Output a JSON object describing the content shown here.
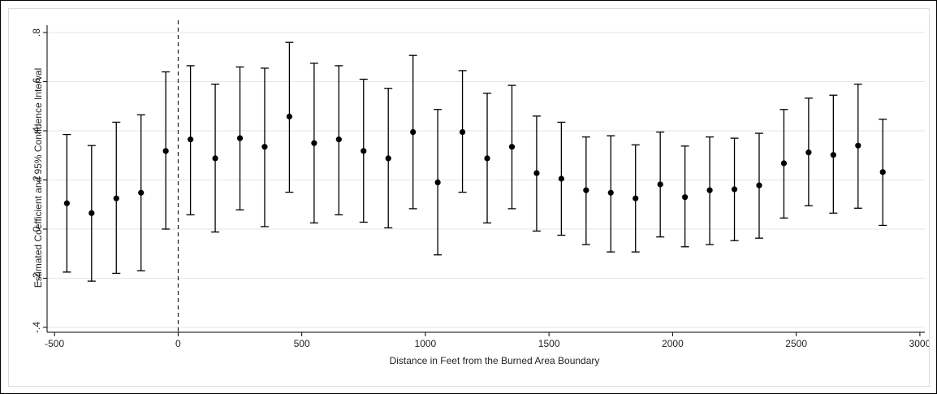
{
  "chart_data": {
    "type": "scatter",
    "subtype": "coefficient plot with 95% confidence intervals",
    "title": "",
    "xlabel": "Distance in Feet from the Burned Area Boundary",
    "ylabel": "Estimated Coefficient and 95% Confidence Interval",
    "xlim": [
      -530,
      3020
    ],
    "ylim": [
      -0.42,
      0.83
    ],
    "xticks": [
      -500,
      0,
      500,
      1000,
      1500,
      2000,
      2500,
      3000
    ],
    "xtick_labels": [
      "-500",
      "0",
      "500",
      "1000",
      "1500",
      "2000",
      "2500",
      "3000"
    ],
    "yticks": [
      -0.4,
      -0.2,
      0,
      0.2,
      0.4,
      0.6,
      0.8
    ],
    "ytick_labels": [
      "-.4",
      "-.2",
      "0",
      ".2",
      ".4",
      ".6",
      ".8"
    ],
    "grid": "horizontal",
    "reference_line": {
      "x": 0,
      "style": "dashed"
    },
    "colors": {
      "marker": "#000000",
      "grid": "#e6e6e6",
      "panel_border": "#d6dde6"
    },
    "x": [
      -450,
      -350,
      -250,
      -150,
      -50,
      50,
      150,
      250,
      350,
      450,
      550,
      650,
      750,
      850,
      950,
      1050,
      1150,
      1250,
      1350,
      1450,
      1550,
      1650,
      1750,
      1850,
      1950,
      2050,
      2150,
      2250,
      2350,
      2450,
      2550,
      2650,
      2750,
      2850
    ],
    "estimate": [
      0.105,
      0.065,
      0.125,
      0.148,
      0.318,
      0.365,
      0.288,
      0.37,
      0.335,
      0.458,
      0.35,
      0.365,
      0.318,
      0.288,
      0.395,
      0.19,
      0.395,
      0.288,
      0.335,
      0.228,
      0.205,
      0.158,
      0.148,
      0.125,
      0.182,
      0.13,
      0.158,
      0.162,
      0.178,
      0.268,
      0.312,
      0.302,
      0.34,
      0.232
    ],
    "ci_low": [
      -0.175,
      -0.212,
      -0.18,
      -0.17,
      0.0,
      0.058,
      -0.012,
      0.078,
      0.01,
      0.15,
      0.025,
      0.058,
      0.028,
      0.005,
      0.083,
      -0.105,
      0.15,
      0.025,
      0.083,
      -0.008,
      -0.025,
      -0.063,
      -0.093,
      -0.093,
      -0.032,
      -0.072,
      -0.063,
      -0.047,
      -0.037,
      0.045,
      0.095,
      0.065,
      0.085,
      0.015
    ],
    "ci_high": [
      0.385,
      0.34,
      0.435,
      0.465,
      0.64,
      0.665,
      0.59,
      0.66,
      0.655,
      0.76,
      0.675,
      0.665,
      0.61,
      0.573,
      0.707,
      0.487,
      0.645,
      0.553,
      0.585,
      0.46,
      0.435,
      0.375,
      0.38,
      0.343,
      0.395,
      0.338,
      0.375,
      0.37,
      0.39,
      0.487,
      0.533,
      0.545,
      0.59,
      0.447
    ]
  }
}
